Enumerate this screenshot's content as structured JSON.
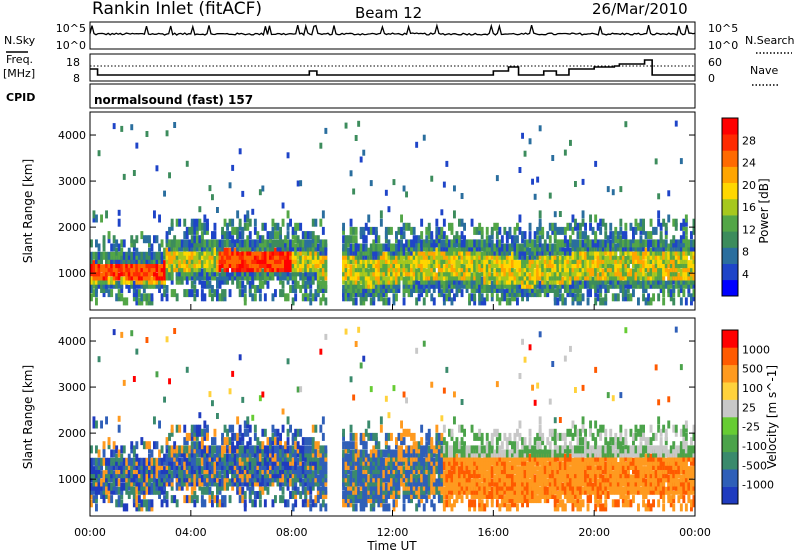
{
  "header": {
    "station": "Rankin Inlet (fitACF)",
    "beam": "Beam 12",
    "date": "26/Mar/2010"
  },
  "nsky_panel": {
    "left_label": "N.Sky",
    "right_label": "N.Search",
    "left_ticks": [
      "10^5",
      "10^0"
    ],
    "right_ticks": [
      "10^5",
      "10^0"
    ]
  },
  "freq_panel": {
    "left_label_1": "Freq.",
    "left_label_2": "[MHz]",
    "left_ticks": [
      "18",
      "8"
    ],
    "right_label": "Nave",
    "right_ticks": [
      "60",
      "0"
    ]
  },
  "cpid_panel": {
    "label": "CPID",
    "program": "normalsound (fast) 157"
  },
  "chart_data": [
    {
      "type": "heatmap",
      "name": "power",
      "ylabel": "Slant Range [km]",
      "ylim": [
        200,
        4500
      ],
      "yticks": [
        1000,
        2000,
        3000,
        4000
      ],
      "xlim": [
        0,
        24
      ],
      "colorbar_label": "Power [dB]",
      "colorbar_ticks": [
        "28",
        "24",
        "20",
        "16",
        "12",
        "8",
        "4"
      ],
      "colors": [
        "#0000ff",
        "#1e44c8",
        "#2a6e9e",
        "#3c8c5c",
        "#53a647",
        "#a6c81e",
        "#ffd700",
        "#ffa500",
        "#ff6a00",
        "#ff2a00",
        "#ff0000"
      ]
    },
    {
      "type": "heatmap",
      "name": "velocity",
      "ylabel": "Slant Range [km]",
      "ylim": [
        200,
        4500
      ],
      "yticks": [
        1000,
        2000,
        3000,
        4000
      ],
      "xlim": [
        0,
        24
      ],
      "colorbar_label": "Velocity [m s^-1]",
      "colorbar_ticks": [
        "1000",
        "500",
        "100",
        "25",
        "-25",
        "-100",
        "-500",
        "-1000"
      ],
      "colors": [
        "#1f3bbf",
        "#2f5fb8",
        "#3a8a6c",
        "#4ba34a",
        "#66cc33",
        "#c8c8c8",
        "#ffd23c",
        "#ff9a1f",
        "#ff5a00",
        "#ff0000"
      ]
    }
  ],
  "xaxis": {
    "label": "Time UT",
    "ticks": [
      "00:00",
      "04:00",
      "08:00",
      "12:00",
      "16:00",
      "20:00",
      "00:00"
    ]
  }
}
